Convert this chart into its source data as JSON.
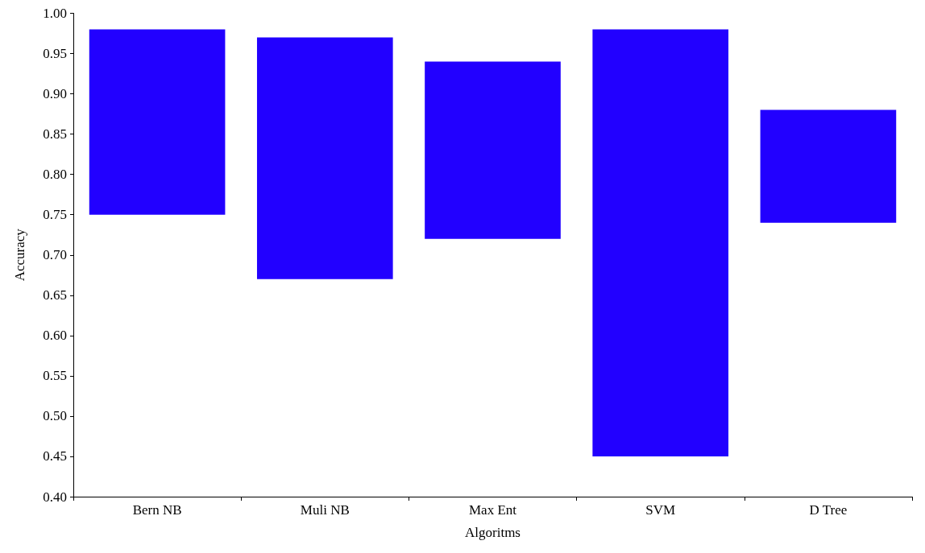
{
  "chart_data": {
    "type": "bar",
    "xlabel": "Algoritms",
    "ylabel": "Accuracy",
    "categories": [
      "Bern NB",
      "Muli NB",
      "Max Ent",
      "SVM",
      "D Tree"
    ],
    "base": [
      0.75,
      0.67,
      0.72,
      0.45,
      0.74
    ],
    "values": [
      0.23,
      0.3,
      0.22,
      0.53,
      0.14
    ],
    "color": "#2200ff",
    "ylim": [
      0.4,
      1.0
    ],
    "yticks": [
      {
        "value": 0.4,
        "label": "0.40"
      },
      {
        "value": 0.45,
        "label": "0.45"
      },
      {
        "value": 0.5,
        "label": "0.50"
      },
      {
        "value": 0.55,
        "label": "0.55"
      },
      {
        "value": 0.6,
        "label": "0.60"
      },
      {
        "value": 0.65,
        "label": "0.65"
      },
      {
        "value": 0.7,
        "label": "0.70"
      },
      {
        "value": 0.75,
        "label": "0.75"
      },
      {
        "value": 0.8,
        "label": "0.80"
      },
      {
        "value": 0.85,
        "label": "0.85"
      },
      {
        "value": 0.9,
        "label": "0.90"
      },
      {
        "value": 0.95,
        "label": "0.95"
      },
      {
        "value": 1.0,
        "label": "1.00"
      }
    ],
    "grid": false
  }
}
